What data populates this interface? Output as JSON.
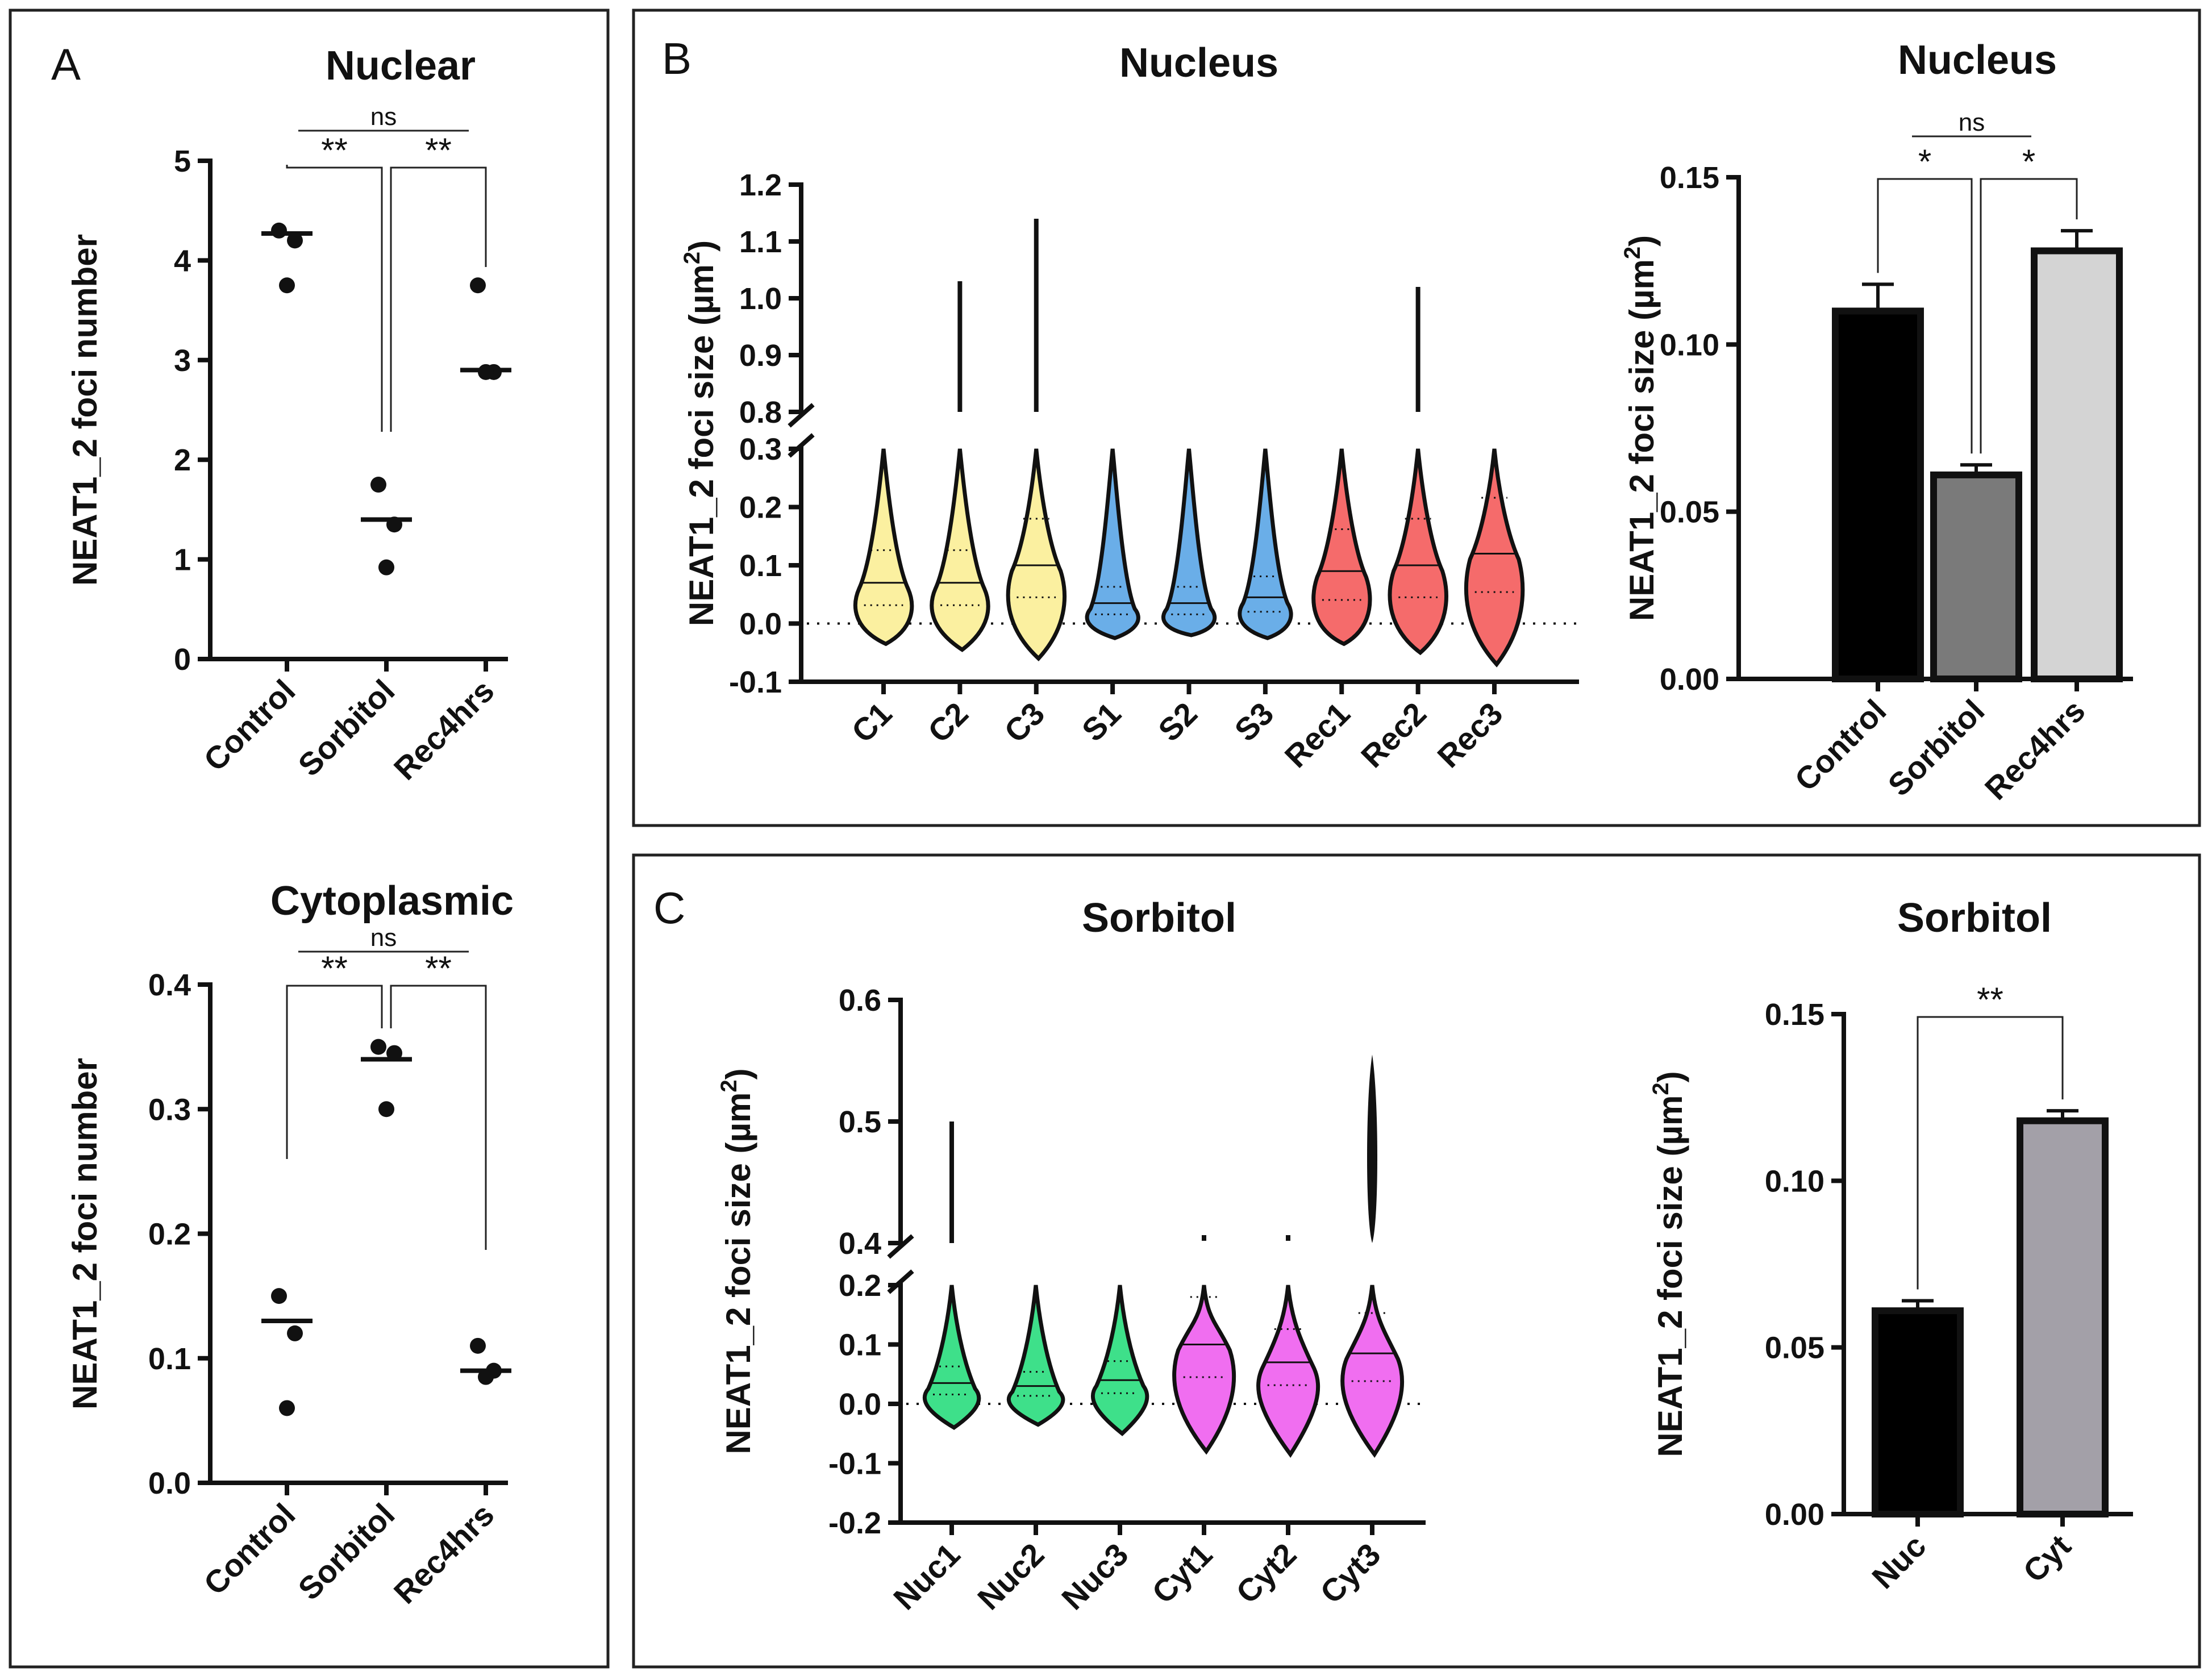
{
  "panels": {
    "A": "A",
    "B": "B",
    "C": "C"
  },
  "chart_data": [
    {
      "id": "A-nuclear",
      "type": "scatter",
      "title": "Nuclear",
      "ylabel": "NEAT1_2 foci number",
      "categories": [
        "Control",
        "Sorbitol",
        "Rec4hrs"
      ],
      "points": [
        [
          4.3,
          4.2,
          3.75
        ],
        [
          1.75,
          1.35,
          0.92
        ],
        [
          3.75,
          2.88,
          2.88
        ]
      ],
      "medians": [
        4.27,
        1.4,
        2.9
      ],
      "ylim": [
        0,
        5
      ],
      "yticks": [
        "0",
        "1",
        "2",
        "3",
        "4",
        "5"
      ],
      "significance": [
        {
          "from": 0,
          "to": 1,
          "label": "**"
        },
        {
          "from": 1,
          "to": 2,
          "label": "**"
        },
        {
          "from": 0,
          "to": 2,
          "label": "ns"
        }
      ]
    },
    {
      "id": "A-cytoplasmic",
      "type": "scatter",
      "title": "Cytoplasmic",
      "ylabel": "NEAT1_2 foci number",
      "categories": [
        "Control",
        "Sorbitol",
        "Rec4hrs"
      ],
      "points": [
        [
          0.15,
          0.12,
          0.06
        ],
        [
          0.35,
          0.345,
          0.3
        ],
        [
          0.11,
          0.09,
          0.085
        ]
      ],
      "medians": [
        0.13,
        0.34,
        0.09
      ],
      "ylim": [
        0,
        0.4
      ],
      "yticks": [
        "0.0",
        "0.1",
        "0.2",
        "0.3",
        "0.4"
      ],
      "significance": [
        {
          "from": 0,
          "to": 1,
          "label": "**"
        },
        {
          "from": 1,
          "to": 2,
          "label": "**"
        },
        {
          "from": 0,
          "to": 2,
          "label": "ns"
        }
      ]
    },
    {
      "id": "B-violin",
      "type": "violin",
      "title": "Nucleus",
      "ylabel": "NEAT1_2 foci size (µm²)",
      "ylim": [
        -0.1,
        1.2
      ],
      "axis_break": [
        0.3,
        0.8
      ],
      "yticks_lower": [
        "-0.1",
        "0.0",
        "0.1",
        "0.2",
        "0.3"
      ],
      "yticks_upper": [
        "0.8",
        "0.9",
        "1.0",
        "1.1",
        "1.2"
      ],
      "categories": [
        "C1",
        "C2",
        "C3",
        "S1",
        "S2",
        "S3",
        "Rec1",
        "Rec2",
        "Rec3"
      ],
      "colors": [
        "#fbf0a0",
        "#fbf0a0",
        "#fbf0a0",
        "#6aaee8",
        "#6aaee8",
        "#6aaee8",
        "#f56b6b",
        "#f56b6b",
        "#f56b6b"
      ],
      "min": [
        -0.035,
        -0.045,
        -0.06,
        -0.025,
        -0.02,
        -0.025,
        -0.035,
        -0.05,
        -0.07
      ],
      "median": [
        0.07,
        0.07,
        0.1,
        0.035,
        0.035,
        0.045,
        0.09,
        0.1,
        0.12
      ],
      "max_visible": [
        0.3,
        0.3,
        0.3,
        0.3,
        0.3,
        0.3,
        0.3,
        0.3,
        0.3
      ],
      "outlier_max": [
        null,
        1.03,
        1.14,
        null,
        null,
        null,
        null,
        1.02,
        null
      ]
    },
    {
      "id": "B-bar",
      "type": "bar",
      "title": "Nucleus",
      "ylabel": "NEAT1_2 foci size (µm²)",
      "categories": [
        "Control",
        "Sorbitol",
        "Rec4hrs"
      ],
      "values": [
        0.11,
        0.061,
        0.128
      ],
      "errors": [
        0.008,
        0.003,
        0.006
      ],
      "colors": [
        "#000000",
        "#7a7a7a",
        "#d4d4d4"
      ],
      "ylim": [
        0,
        0.15
      ],
      "yticks": [
        "0.00",
        "0.05",
        "0.10",
        "0.15"
      ],
      "significance": [
        {
          "from": 0,
          "to": 1,
          "label": "*"
        },
        {
          "from": 1,
          "to": 2,
          "label": "*"
        },
        {
          "from": 0,
          "to": 2,
          "label": "ns"
        }
      ]
    },
    {
      "id": "C-violin",
      "type": "violin",
      "title": "Sorbitol",
      "ylabel": "NEAT1_2 foci size (µm²)",
      "ylim": [
        -0.2,
        0.6
      ],
      "axis_break": [
        0.2,
        0.4
      ],
      "yticks_lower": [
        "-0.2",
        "-0.1",
        "0.0",
        "0.1",
        "0.2"
      ],
      "yticks_upper": [
        "0.4",
        "0.5",
        "0.6"
      ],
      "categories": [
        "Nuc1",
        "Nuc2",
        "Nuc3",
        "Cyt1",
        "Cyt2",
        "Cyt3"
      ],
      "colors": [
        "#3ee08a",
        "#3ee08a",
        "#3ee08a",
        "#f06ef0",
        "#f06ef0",
        "#f06ef0"
      ],
      "min": [
        -0.04,
        -0.035,
        -0.05,
        -0.08,
        -0.085,
        -0.085
      ],
      "median": [
        0.035,
        0.03,
        0.04,
        0.1,
        0.07,
        0.085
      ],
      "max_visible": [
        0.2,
        0.2,
        0.2,
        0.2,
        0.2,
        0.2
      ],
      "outlier_max": [
        0.5,
        null,
        null,
        0.4,
        0.4,
        0.555
      ]
    },
    {
      "id": "C-bar",
      "type": "bar",
      "title": "Sorbitol",
      "ylabel": "NEAT1_2 foci size (µm²)",
      "categories": [
        "Nuc",
        "Cyt"
      ],
      "values": [
        0.061,
        0.118
      ],
      "errors": [
        0.003,
        0.003
      ],
      "colors": [
        "#000000",
        "#a3a0a8"
      ],
      "ylim": [
        0,
        0.15
      ],
      "yticks": [
        "0.00",
        "0.05",
        "0.10",
        "0.15"
      ],
      "significance": [
        {
          "from": 0,
          "to": 1,
          "label": "**"
        }
      ]
    }
  ]
}
